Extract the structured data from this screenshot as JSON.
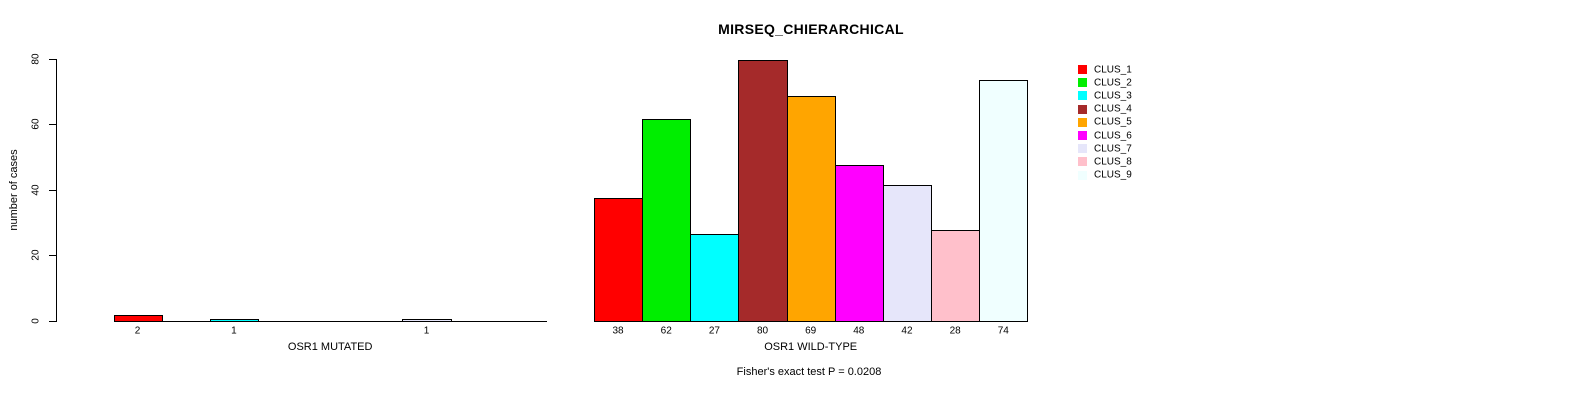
{
  "title": "MIRSEQ_CHIERARCHICAL",
  "footer": "Fisher's exact test P = 0.0208",
  "y_axis": {
    "label": "number of cases",
    "ticks": [
      0,
      20,
      40,
      60,
      80
    ]
  },
  "legend": {
    "entries": [
      {
        "label": "CLUS_1",
        "color": "#FF0000"
      },
      {
        "label": "CLUS_2",
        "color": "#00EE00"
      },
      {
        "label": "CLUS_3",
        "color": "#00FFFF"
      },
      {
        "label": "CLUS_4",
        "color": "#A52A2A"
      },
      {
        "label": "CLUS_5",
        "color": "#FFA500"
      },
      {
        "label": "CLUS_6",
        "color": "#FF00FF"
      },
      {
        "label": "CLUS_7",
        "color": "#E6E6FA"
      },
      {
        "label": "CLUS_8",
        "color": "#FFC0CB"
      },
      {
        "label": "CLUS_9",
        "color": "#F0FFFF"
      }
    ]
  },
  "chart_data": {
    "type": "bar",
    "title": "MIRSEQ_CHIERARCHICAL",
    "ylabel": "number of cases",
    "ylim": [
      0,
      80
    ],
    "yticks": [
      0,
      20,
      40,
      60,
      80
    ],
    "grid": false,
    "legend_position": "top-right",
    "categories": [
      "CLUS_1",
      "CLUS_2",
      "CLUS_3",
      "CLUS_4",
      "CLUS_5",
      "CLUS_6",
      "CLUS_7",
      "CLUS_8",
      "CLUS_9"
    ],
    "colors": [
      "#FF0000",
      "#00EE00",
      "#00FFFF",
      "#A52A2A",
      "#FFA500",
      "#FF00FF",
      "#E6E6FA",
      "#FFC0CB",
      "#F0FFFF"
    ],
    "groups": [
      {
        "label": "OSR1 MUTATED",
        "values": [
          2,
          0,
          1,
          0,
          0,
          0,
          1,
          0,
          0
        ]
      },
      {
        "label": "OSR1 WILD-TYPE",
        "values": [
          38,
          62,
          27,
          80,
          69,
          48,
          42,
          28,
          74
        ]
      }
    ],
    "annotation": "Fisher's exact test P = 0.0208",
    "bar_label_rule": "value shown under bar only when value > 0"
  }
}
